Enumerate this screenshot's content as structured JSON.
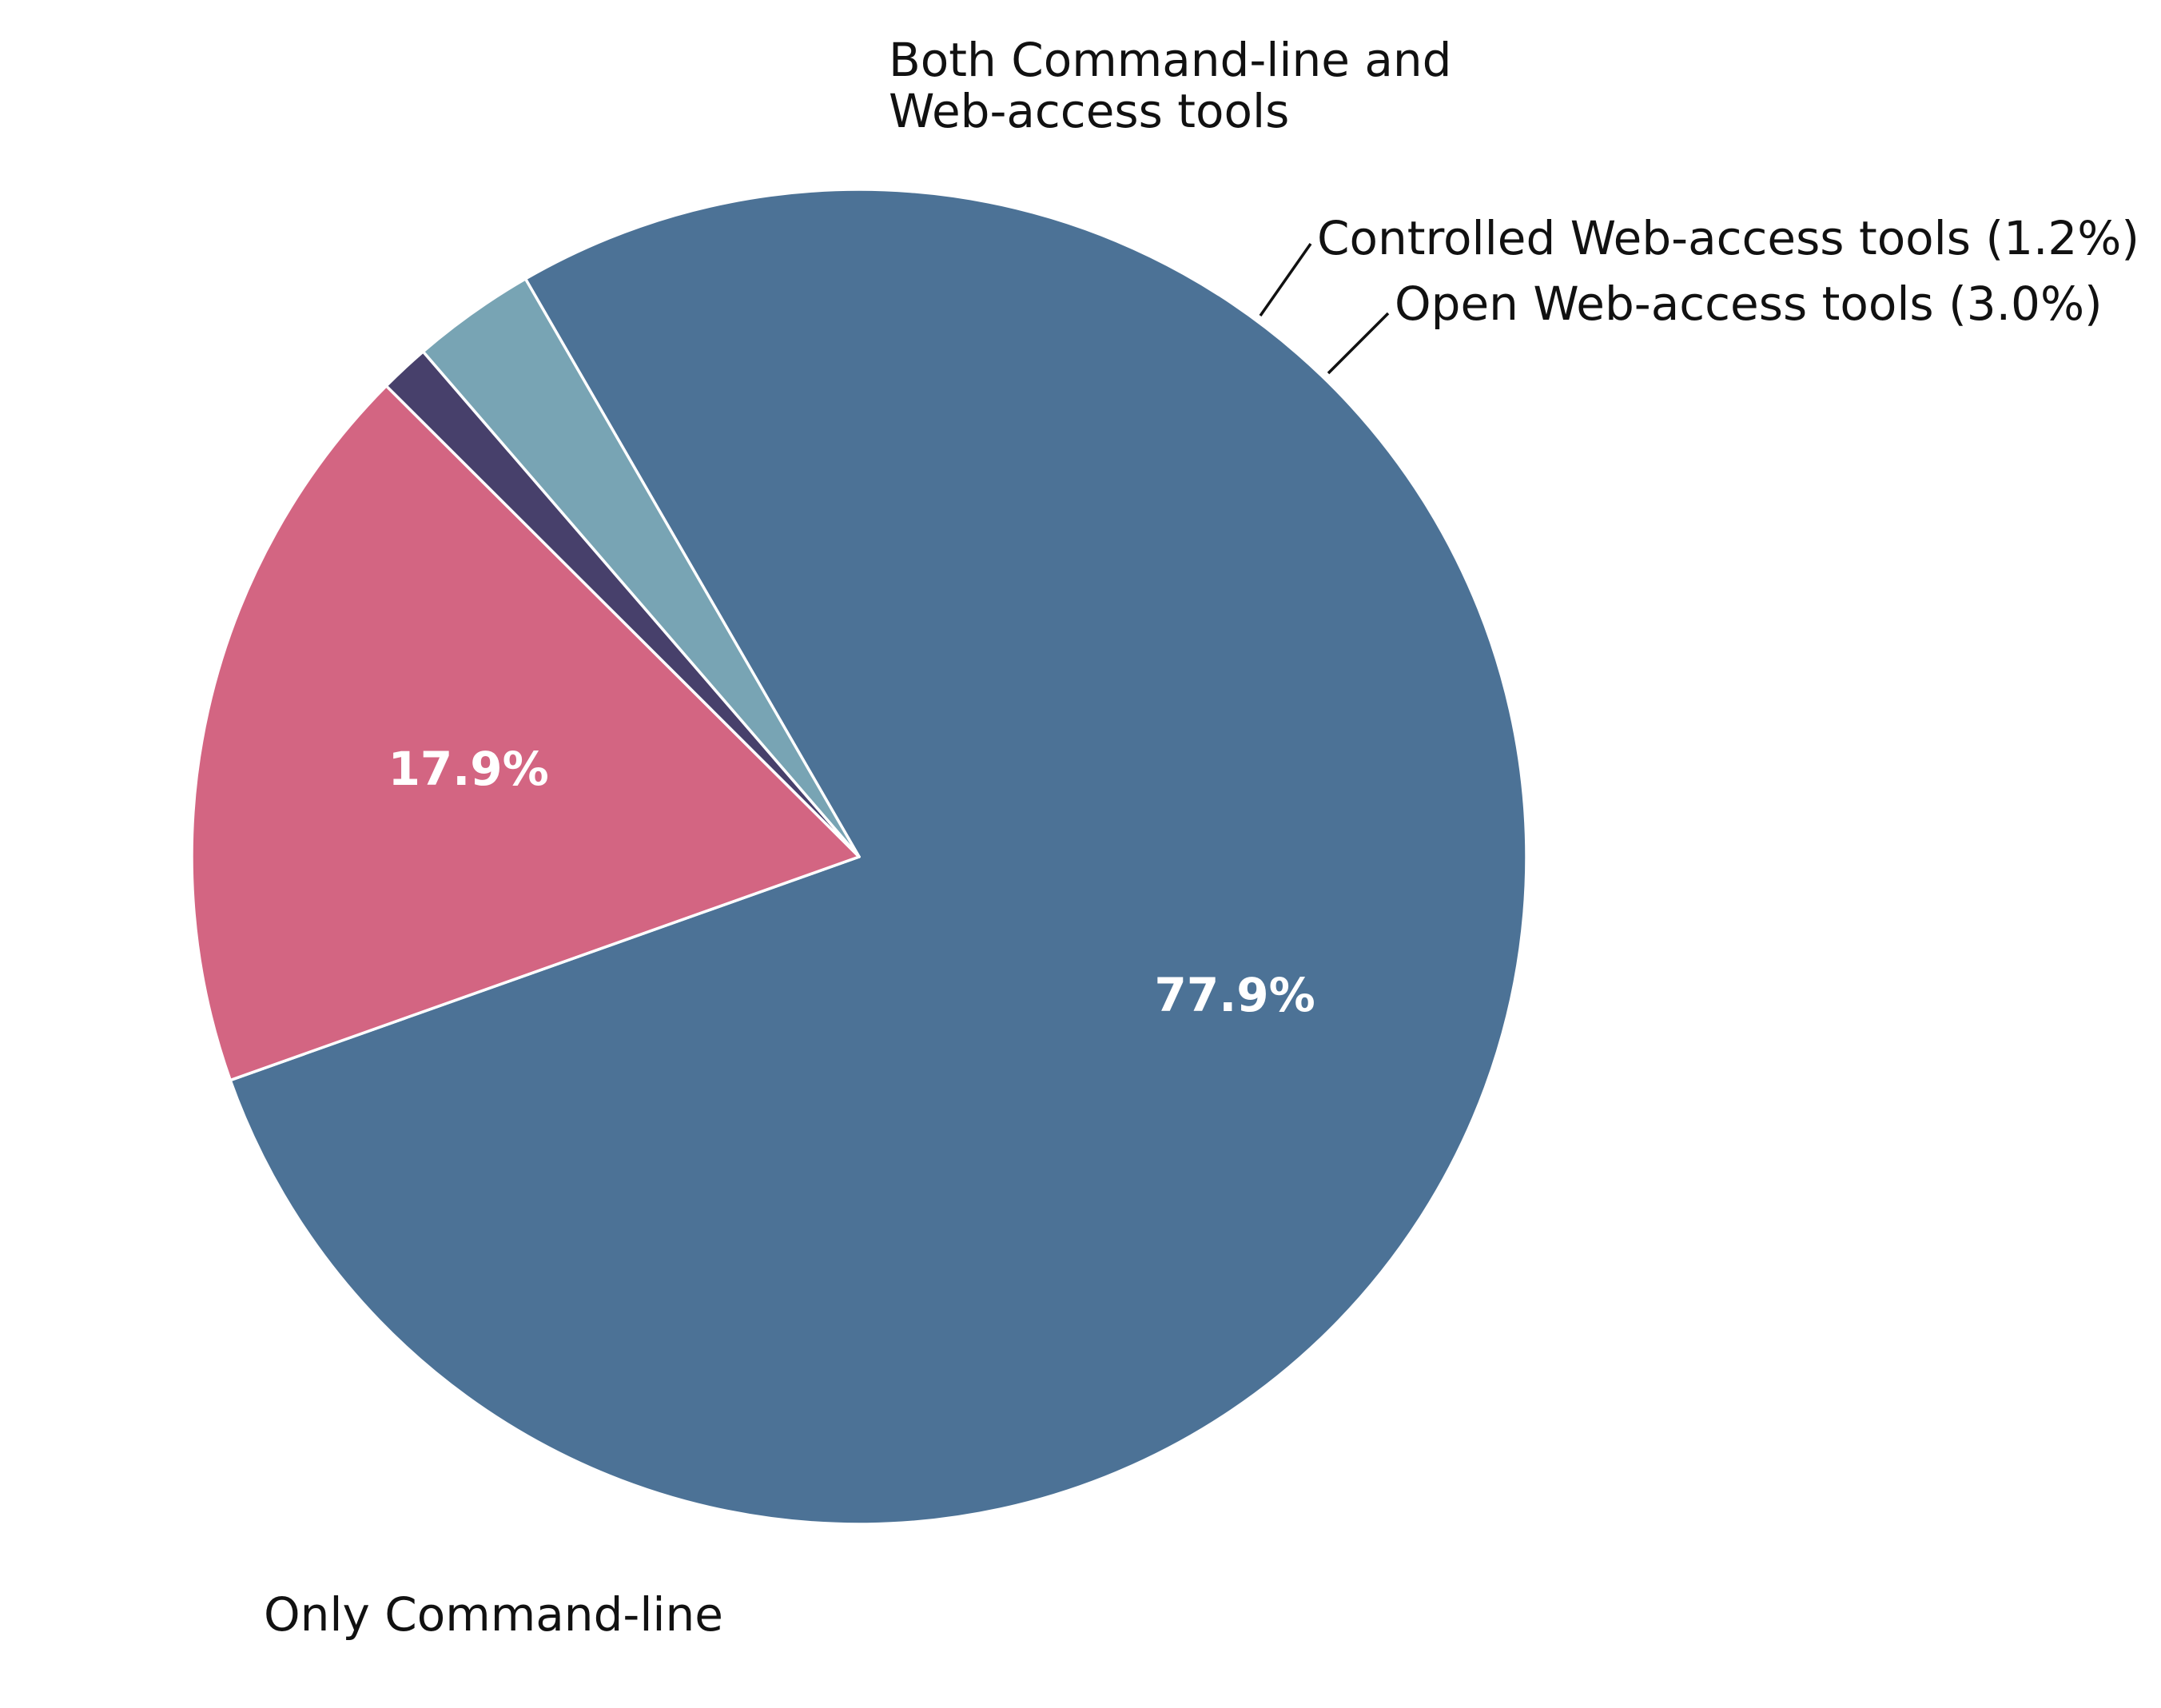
{
  "chart_data": {
    "type": "pie",
    "title": "",
    "start_angle_deg": 120,
    "direction": "clockwise",
    "slices": [
      {
        "name": "Only Command-line",
        "value": 77.9,
        "color": "#4c7296",
        "pct_text": "77.9%",
        "label_lines": [
          "Only Command-line"
        ],
        "label_mode": "outer"
      },
      {
        "name": "Both Command-line and Web-access tools",
        "value": 17.9,
        "color": "#d36582",
        "pct_text": "17.9%",
        "label_lines": [
          "Both Command-line and",
          "Web-access tools"
        ],
        "label_mode": "outer"
      },
      {
        "name": "Controlled Web-access tools",
        "value": 1.2,
        "color": "#47406b",
        "pct_text": "",
        "label_lines": [
          "Controlled Web-access tools (1.2%)"
        ],
        "label_mode": "leader"
      },
      {
        "name": "Open Web-access tools",
        "value": 3.0,
        "color": "#78a4b4",
        "pct_text": "",
        "label_lines": [
          "Open Web-access tools (3.0%)"
        ],
        "label_mode": "leader"
      }
    ]
  }
}
